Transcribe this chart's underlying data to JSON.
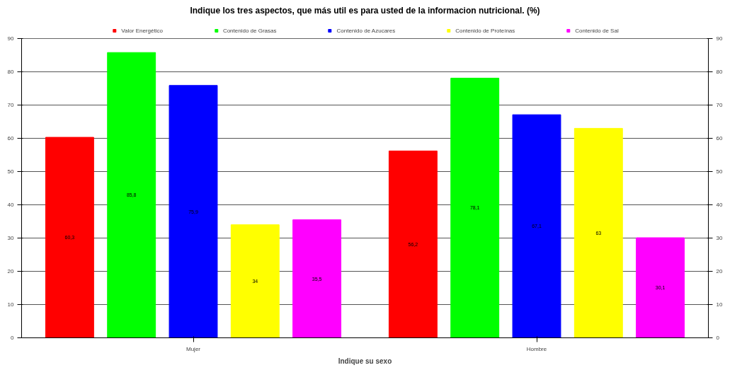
{
  "chart_data": {
    "type": "bar",
    "title": "Indique los tres aspectos, que más util es para usted de la informacion nutricional. (%)",
    "xlabel": "Indique su sexo",
    "categories": [
      "Mujer",
      "Hombre"
    ],
    "series": [
      {
        "name": "Valor Energético",
        "color": "#ff0000",
        "values": [
          60.3,
          56.2
        ],
        "value_labels": [
          "60,3",
          "56,2"
        ]
      },
      {
        "name": "Contenido de Grasas",
        "color": "#00ff00",
        "values": [
          85.8,
          78.1
        ],
        "value_labels": [
          "85,8",
          "78,1"
        ]
      },
      {
        "name": "Contenido de Azucares",
        "color": "#0000ff",
        "values": [
          75.9,
          67.1
        ],
        "value_labels": [
          "75,9",
          "67,1"
        ]
      },
      {
        "name": "Contenido de Proteínas",
        "color": "#ffff00",
        "values": [
          34,
          63
        ],
        "value_labels": [
          "34",
          "63"
        ]
      },
      {
        "name": "Contenido de Sal",
        "color": "#ff00ff",
        "values": [
          35.5,
          30.1
        ],
        "value_labels": [
          "35,5",
          "30,1"
        ]
      }
    ],
    "ylim": [
      0,
      90
    ],
    "yticks": [
      0,
      10,
      20,
      30,
      40,
      50,
      60,
      70,
      80,
      90
    ],
    "y2lim": [
      0,
      90
    ],
    "y2ticks": [
      0,
      10,
      20,
      30,
      40,
      50,
      60,
      70,
      80,
      90
    ],
    "grid": "y",
    "legend": "top"
  }
}
